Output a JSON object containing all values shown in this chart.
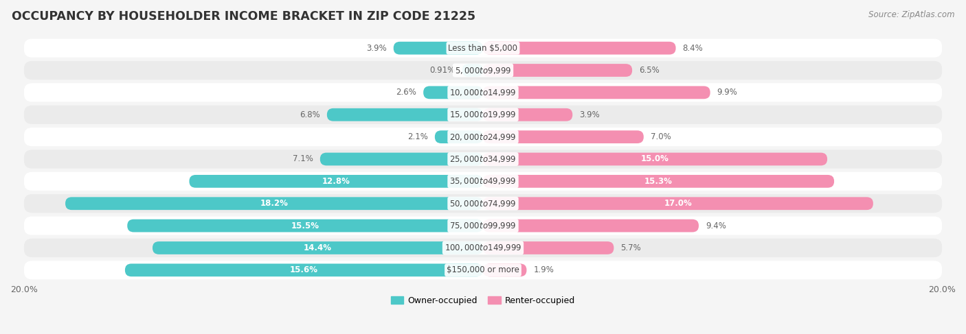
{
  "title": "OCCUPANCY BY HOUSEHOLDER INCOME BRACKET IN ZIP CODE 21225",
  "source": "Source: ZipAtlas.com",
  "categories": [
    "Less than $5,000",
    "$5,000 to $9,999",
    "$10,000 to $14,999",
    "$15,000 to $19,999",
    "$20,000 to $24,999",
    "$25,000 to $34,999",
    "$35,000 to $49,999",
    "$50,000 to $74,999",
    "$75,000 to $99,999",
    "$100,000 to $149,999",
    "$150,000 or more"
  ],
  "owner_values": [
    3.9,
    0.91,
    2.6,
    6.8,
    2.1,
    7.1,
    12.8,
    18.2,
    15.5,
    14.4,
    15.6
  ],
  "renter_values": [
    8.4,
    6.5,
    9.9,
    3.9,
    7.0,
    15.0,
    15.3,
    17.0,
    9.4,
    5.7,
    1.9
  ],
  "owner_color": "#4DC8C8",
  "renter_color": "#F48FB1",
  "renter_color_dark": "#F06292",
  "owner_label": "Owner-occupied",
  "renter_label": "Renter-occupied",
  "xlim": 20.0,
  "bar_height": 0.58,
  "background_color": "#f5f5f5",
  "row_bg_colors": [
    "#ffffff",
    "#ebebeb"
  ],
  "title_fontsize": 12.5,
  "cat_fontsize": 8.5,
  "pct_fontsize": 8.5,
  "tick_fontsize": 9,
  "source_fontsize": 8.5,
  "owner_label_threshold": 10.0,
  "renter_label_threshold": 12.0
}
